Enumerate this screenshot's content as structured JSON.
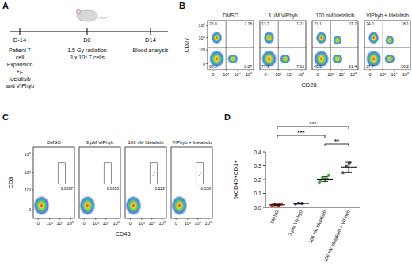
{
  "panel_a": {
    "label": "A",
    "timepoints": [
      "D-14",
      "D0",
      "D14"
    ],
    "events": [
      [
        "Patient T",
        "cell",
        "Expansion",
        "+/-",
        "Idelalisib",
        "and VIPhyb"
      ],
      [
        "1.5 Gy radiation",
        "3 x 10⁶ T cells"
      ],
      [
        "Blood analysis"
      ]
    ]
  },
  "panel_b": {
    "label": "B",
    "x_label": "CD28",
    "y_label": "CD27",
    "axis_ticks": [
      "0",
      "10³",
      "10⁴",
      "10⁵"
    ],
    "plots": [
      {
        "title": "DMSO",
        "quadrants": [
          "20.8",
          "2.18",
          "68.3",
          "8.87"
        ]
      },
      {
        "title": "3 µM VIPhyb",
        "quadrants": [
          "13.7",
          "1.21",
          "77.9",
          "7.15"
        ]
      },
      {
        "title": "100 nM Idelalisib",
        "quadrants": [
          "21.1",
          "11.2",
          "46.3",
          "21.4"
        ]
      },
      {
        "title": "VIPhyb + Idelalisib",
        "quadrants": [
          "24.0",
          "18.1",
          "37.7",
          "20.2"
        ]
      }
    ]
  },
  "panel_c": {
    "label": "C",
    "x_label": "CD45",
    "y_label": "CD3",
    "axis_ticks": [
      "0",
      "10³",
      "10⁴",
      "10⁵"
    ],
    "plots": [
      {
        "title": "DMSO",
        "gate": "0.0207"
      },
      {
        "title": "3 µM VIPhyb",
        "gate": "0.0093"
      },
      {
        "title": "100 nM Idelalisib",
        "gate": "0.222"
      },
      {
        "title": "VIPhyb + Idelalisib",
        "gate": "0.338"
      }
    ]
  },
  "panel_d": {
    "label": "D"
  },
  "chart_data": {
    "type": "scatter",
    "y_label": "%CD45+CD3+",
    "categories": [
      "DMSO",
      "3 µM VIPhyb",
      "100 nM Idelalisib",
      "100 nM Idelalisib + VIPhyb"
    ],
    "values": [
      [
        0.015,
        0.02,
        0.01,
        0.025,
        0.018,
        0.02
      ],
      [
        0.025,
        0.03,
        0.028
      ],
      [
        0.18,
        0.21,
        0.2,
        0.23,
        0.195,
        0.205
      ],
      [
        0.25,
        0.3,
        0.32
      ]
    ],
    "means": [
      0.018,
      0.028,
      0.203,
      0.29
    ],
    "errors": [
      0.005,
      0.003,
      0.018,
      0.035
    ],
    "colors": [
      "#e0301e",
      "#3a3a5a",
      "#3aa63a",
      "#555555"
    ],
    "marker": "circle",
    "ylim": [
      0,
      0.4
    ],
    "yticks": [
      {
        "value": 0,
        "label": "0.0"
      },
      0.1,
      0.2,
      0.3,
      0.4
    ],
    "annotations": [
      {
        "text": "***",
        "groups": [
          0,
          3
        ]
      },
      {
        "text": "***",
        "groups": [
          0,
          2
        ]
      },
      {
        "text": "**",
        "groups": [
          2,
          3
        ]
      }
    ]
  }
}
